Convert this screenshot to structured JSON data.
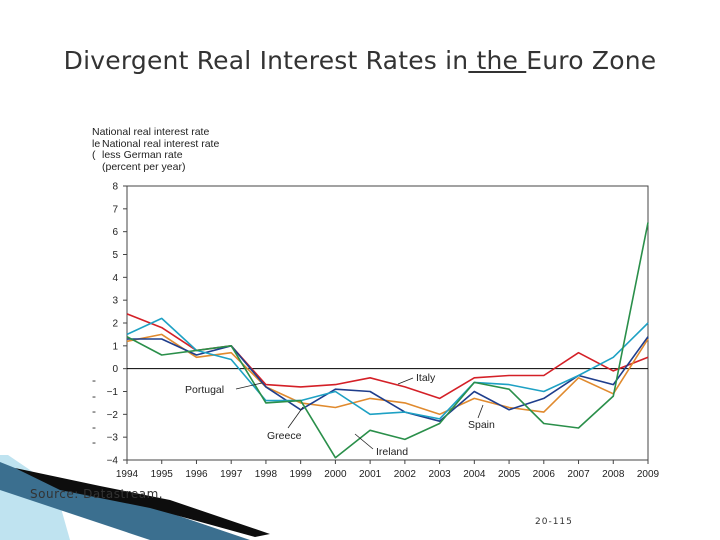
{
  "slide": {
    "title_part1": "Divergent Real Interest Rates in",
    "title_underlined": " the ",
    "title_part2": "Euro Zone",
    "source": "Source: Datastream.",
    "page_number": "20-115"
  },
  "chart_data": {
    "type": "line",
    "title": "Divergent Real Interest Rates in the Euro Zone",
    "ylabel_line1": "National real interest rate",
    "ylabel_line2": "less German rate",
    "ylabel_line3": "(percent per year)",
    "ylabel_ghost_line2": "le",
    "ylabel_ghost_line3": "(",
    "xlabel": "",
    "ylim": [
      -4,
      8
    ],
    "yticks": [
      -4,
      -3,
      -2,
      -1,
      0,
      1,
      2,
      3,
      4,
      5,
      6,
      7,
      8
    ],
    "x": [
      1994,
      1995,
      1996,
      1997,
      1998,
      1999,
      2000,
      2001,
      2002,
      2003,
      2004,
      2005,
      2006,
      2007,
      2008,
      2009
    ],
    "series": [
      {
        "name": "Italy",
        "color": "#d42027",
        "values": [
          2.4,
          1.8,
          0.8,
          1.0,
          -0.7,
          -0.8,
          -0.7,
          -0.4,
          -0.8,
          -1.3,
          -0.4,
          -0.3,
          -0.3,
          0.7,
          -0.1,
          0.5
        ]
      },
      {
        "name": "Portugal",
        "color": "#e08a2e",
        "values": [
          1.2,
          1.5,
          0.5,
          0.7,
          -0.8,
          -1.5,
          -1.7,
          -1.3,
          -1.5,
          -2.0,
          -1.3,
          -1.7,
          -1.9,
          -0.4,
          -1.1,
          1.3
        ]
      },
      {
        "name": "Greece",
        "color": "#1f3e8c",
        "values": [
          1.3,
          1.3,
          0.6,
          1.0,
          -0.8,
          -1.8,
          -0.9,
          -1.0,
          -1.9,
          -2.3,
          -1.0,
          -1.8,
          -1.3,
          -0.3,
          -0.7,
          1.4
        ]
      },
      {
        "name": "Spain",
        "color": "#1ea1c4",
        "values": [
          1.5,
          2.2,
          0.8,
          0.4,
          -1.4,
          -1.4,
          -1.0,
          -2.0,
          -1.9,
          -2.2,
          -0.6,
          -0.7,
          -1.0,
          -0.3,
          0.5,
          2.0
        ]
      },
      {
        "name": "Ireland",
        "color": "#2a8f4a",
        "values": [
          1.4,
          0.6,
          0.8,
          1.0,
          -1.5,
          -1.4,
          -3.9,
          -2.7,
          -3.1,
          -2.4,
          -0.6,
          -0.9,
          -2.4,
          -2.6,
          -1.2,
          6.4
        ]
      }
    ],
    "annotations": [
      {
        "label": "Italy",
        "series": "Italy"
      },
      {
        "label": "Portugal",
        "series": "Portugal"
      },
      {
        "label": "Greece",
        "series": "Greece"
      },
      {
        "label": "Spain",
        "series": "Spain"
      },
      {
        "label": "Ireland",
        "series": "Ireland"
      }
    ],
    "zero_line": true,
    "grid": false
  },
  "bullets": [
    "-",
    "-",
    "-",
    "-",
    "-"
  ],
  "colors": {
    "axis": "#444444",
    "zero_line": "#000000",
    "decor_dark": "#0d0d0d",
    "decor_blue": "#3b6f8f",
    "decor_light": "#bfe3f0"
  }
}
